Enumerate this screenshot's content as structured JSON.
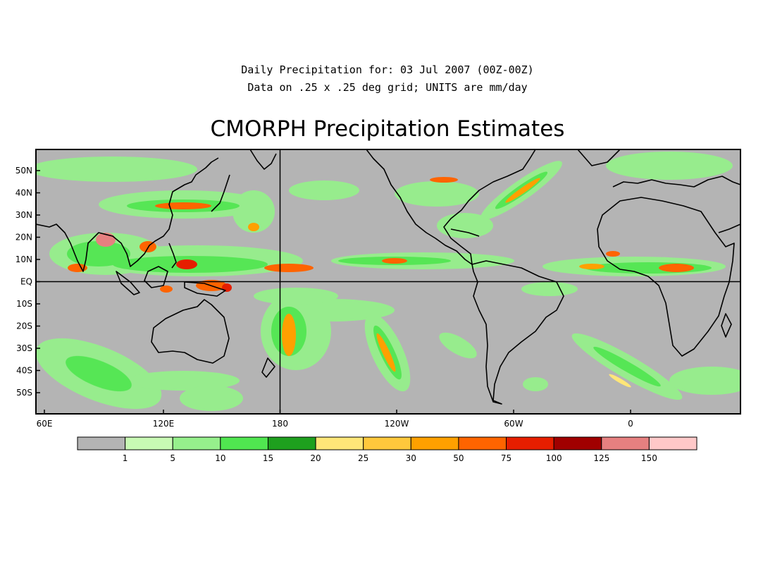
{
  "header": {
    "line1": "Daily Precipitation for: 03 Jul 2007 (00Z-00Z)",
    "line2": "Data on .25 x .25 deg grid; UNITS are mm/day",
    "title": "CMORPH Precipitation Estimates"
  },
  "map": {
    "lon_range": [
      55,
      0
    ],
    "lat_range": [
      -60,
      60
    ],
    "reference_lines": [
      "180",
      "EQ"
    ],
    "lat_ticks": [
      "50N",
      "40N",
      "30N",
      "20N",
      "10N",
      "EQ",
      "10S",
      "20S",
      "30S",
      "40S",
      "50S"
    ],
    "lon_ticks": [
      "60E",
      "120E",
      "180",
      "120W",
      "60W",
      "0"
    ]
  },
  "legend": {
    "labels": [
      "1",
      "5",
      "10",
      "15",
      "20",
      "25",
      "30",
      "50",
      "75",
      "100",
      "125",
      "150"
    ],
    "colors": [
      "#b4b4b4",
      "#c8fab4",
      "#96f08c",
      "#50e650",
      "#1ea01e",
      "#ffe678",
      "#ffc83c",
      "#ffa000",
      "#ff6400",
      "#e61e00",
      "#a00000",
      "#e68080",
      "#ffc8c8"
    ]
  },
  "colors": {
    "ocean_no_rain": "#b4b4b4",
    "coast": "#000000"
  }
}
